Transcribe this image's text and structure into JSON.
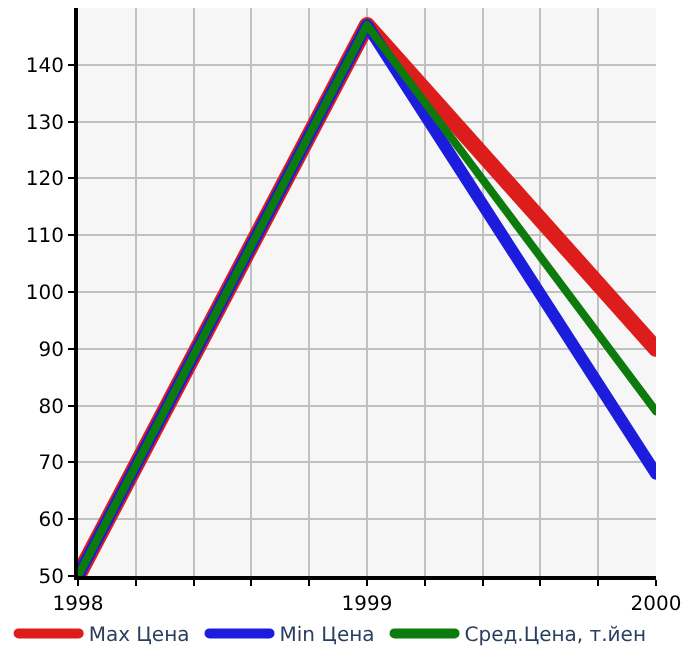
{
  "chart_data": {
    "type": "line",
    "x": [
      1998,
      1999,
      2000
    ],
    "series": [
      {
        "name": "Max Цена",
        "color": "#dd1c1c",
        "values": [
          50,
          147,
          90
        ]
      },
      {
        "name": "Min Цена",
        "color": "#1c1cdd",
        "values": [
          50,
          147,
          68
        ]
      },
      {
        "name": "Сред.Цена, т.йен",
        "color": "#0c7a0c",
        "values": [
          50,
          147,
          79
        ]
      }
    ],
    "xlim": [
      1998,
      2000
    ],
    "xticks": [
      1998,
      {
        "value": 1998.2,
        "label": null
      },
      {
        "value": 1998.4,
        "label": null
      },
      {
        "value": 1998.6,
        "label": null
      },
      {
        "value": 1998.8,
        "label": null
      },
      1999,
      {
        "value": 1999.2,
        "label": null
      },
      {
        "value": 1999.4,
        "label": null
      },
      {
        "value": 1999.6,
        "label": null
      },
      {
        "value": 1999.8,
        "label": null
      },
      2000
    ],
    "ylim": [
      50,
      150
    ],
    "yticks": [
      50,
      60,
      70,
      80,
      90,
      100,
      110,
      120,
      130,
      140
    ],
    "grid": true,
    "legend": "bottom",
    "marker": "none",
    "line_style": "solid"
  }
}
